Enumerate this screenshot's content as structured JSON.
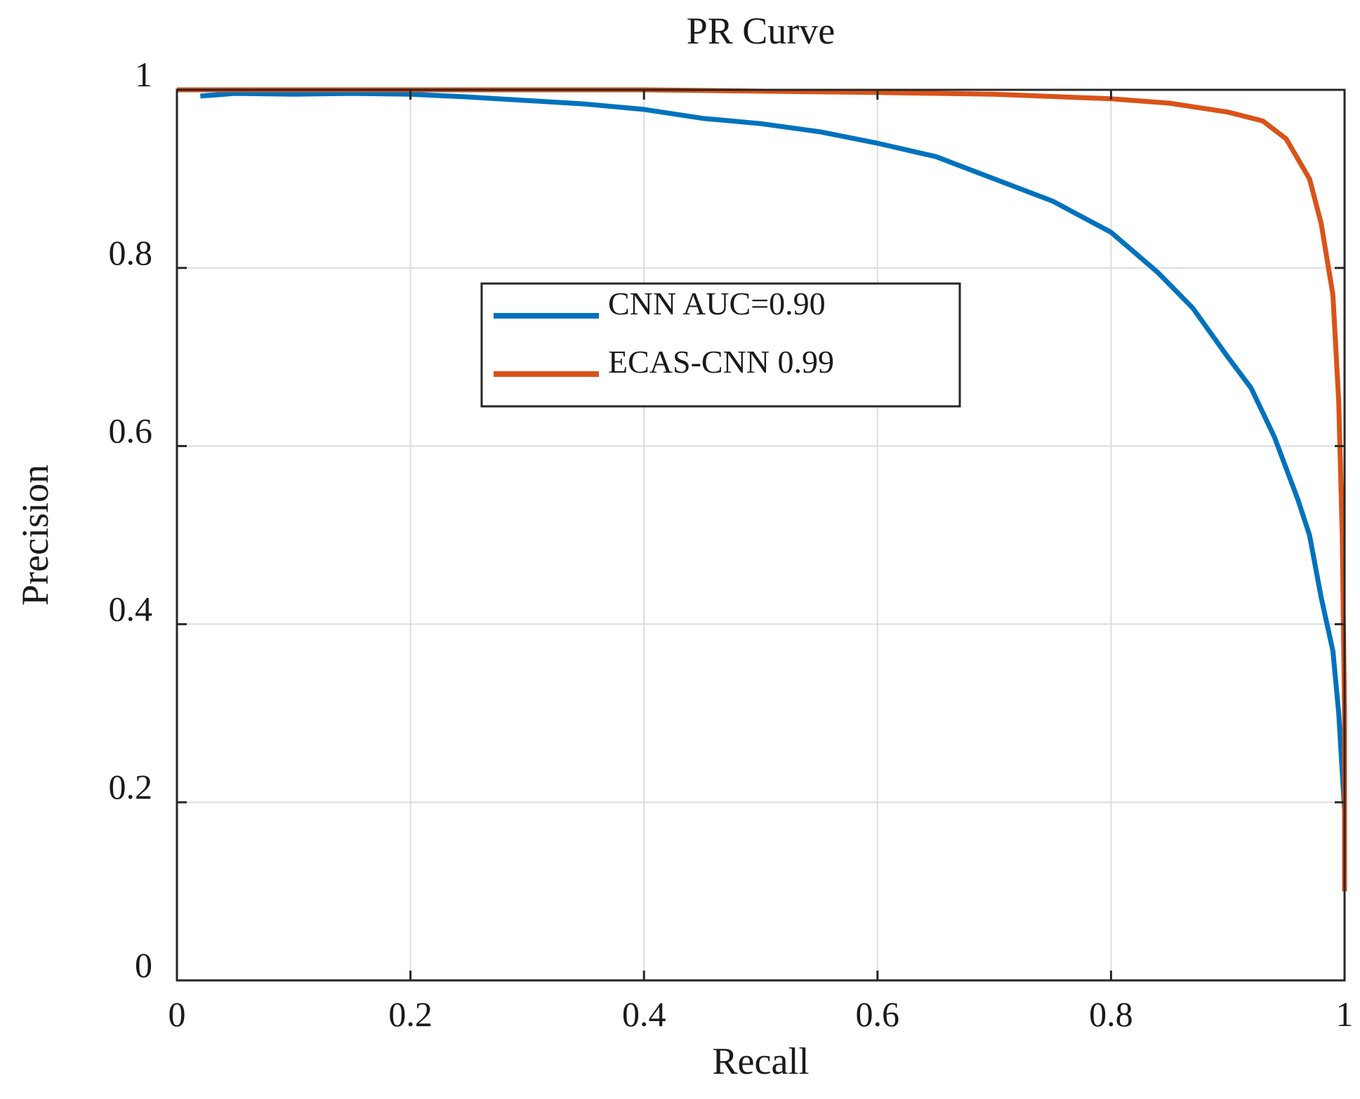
{
  "chart_data": {
    "type": "line",
    "title": "PR Curve",
    "xlabel": "Recall",
    "ylabel": "Precision",
    "xlim": [
      0,
      1
    ],
    "ylim": [
      0,
      1
    ],
    "grid": true,
    "x_ticks": [
      0,
      0.2,
      0.4,
      0.6,
      0.8,
      1
    ],
    "x_tick_labels": [
      "0",
      "0.2",
      "0.4",
      "0.6",
      "0.8",
      "1"
    ],
    "y_ticks": [
      0,
      0.2,
      0.4,
      0.6,
      0.8,
      1
    ],
    "y_tick_labels": [
      "0",
      "0.2",
      "0.4",
      "0.6",
      "0.8",
      "1"
    ],
    "legend_position": "upper-center",
    "series": [
      {
        "name": "CNN AUC=0.90",
        "color": "#0072BD",
        "points": [
          [
            0.02,
            0.993
          ],
          [
            0.05,
            0.996
          ],
          [
            0.1,
            0.995
          ],
          [
            0.15,
            0.996
          ],
          [
            0.2,
            0.995
          ],
          [
            0.25,
            0.992
          ],
          [
            0.3,
            0.988
          ],
          [
            0.35,
            0.984
          ],
          [
            0.4,
            0.978
          ],
          [
            0.45,
            0.968
          ],
          [
            0.5,
            0.962
          ],
          [
            0.55,
            0.953
          ],
          [
            0.6,
            0.94
          ],
          [
            0.65,
            0.925
          ],
          [
            0.7,
            0.9
          ],
          [
            0.75,
            0.875
          ],
          [
            0.8,
            0.84
          ],
          [
            0.84,
            0.795
          ],
          [
            0.87,
            0.755
          ],
          [
            0.9,
            0.7
          ],
          [
            0.92,
            0.665
          ],
          [
            0.94,
            0.61
          ],
          [
            0.96,
            0.54
          ],
          [
            0.97,
            0.5
          ],
          [
            0.98,
            0.43
          ],
          [
            0.99,
            0.37
          ],
          [
            0.995,
            0.3
          ],
          [
            1.0,
            0.19
          ]
        ]
      },
      {
        "name": "ECAS-CNN 0.99",
        "color": "#D95319",
        "points": [
          [
            0.0,
            1.0
          ],
          [
            0.2,
            1.0
          ],
          [
            0.4,
            1.0
          ],
          [
            0.6,
            0.997
          ],
          [
            0.7,
            0.995
          ],
          [
            0.8,
            0.99
          ],
          [
            0.85,
            0.985
          ],
          [
            0.9,
            0.975
          ],
          [
            0.93,
            0.965
          ],
          [
            0.95,
            0.945
          ],
          [
            0.97,
            0.9
          ],
          [
            0.98,
            0.85
          ],
          [
            0.99,
            0.77
          ],
          [
            0.995,
            0.65
          ],
          [
            0.998,
            0.5
          ],
          [
            1.0,
            0.3
          ],
          [
            1.0,
            0.1
          ]
        ]
      }
    ]
  }
}
